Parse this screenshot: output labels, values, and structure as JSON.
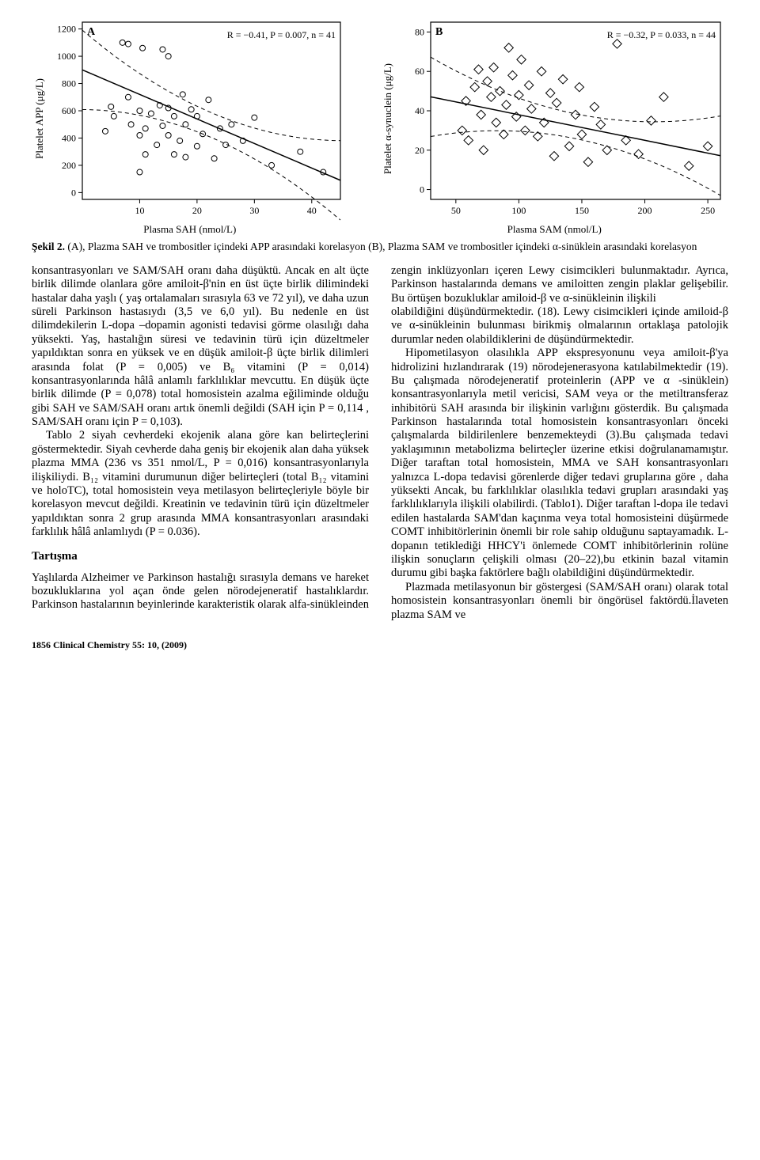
{
  "figure": {
    "A": {
      "type": "scatter",
      "panel_label": "A",
      "stats_text": "R = −0.41, P = 0.007, n = 41",
      "xlabel": "Plasma SAH (nmol/L)",
      "ylabel": "Platelet APP (μg/L)",
      "xlim": [
        0,
        45
      ],
      "ylim": [
        -50,
        1250
      ],
      "xticks": [
        10,
        20,
        30,
        40
      ],
      "yticks": [
        0,
        200,
        400,
        600,
        800,
        1000,
        1200
      ],
      "background_color": "#ffffff",
      "axis_color": "#000000",
      "marker": {
        "shape": "circle",
        "stroke": "#000000",
        "fill": "none",
        "size": 7
      },
      "regression": {
        "slope": -18.0,
        "intercept": 900,
        "stroke": "#000000",
        "width": 1.5
      },
      "ci_dash": "5,4",
      "label_fontsize": 13,
      "tick_fontsize": 12,
      "points": [
        [
          4,
          450
        ],
        [
          5,
          630
        ],
        [
          5.5,
          560
        ],
        [
          7,
          1100
        ],
        [
          8,
          1090
        ],
        [
          8,
          700
        ],
        [
          8.5,
          500
        ],
        [
          10,
          150
        ],
        [
          10,
          420
        ],
        [
          10,
          600
        ],
        [
          10.5,
          1060
        ],
        [
          11,
          280
        ],
        [
          11,
          470
        ],
        [
          12,
          580
        ],
        [
          13,
          350
        ],
        [
          13.5,
          640
        ],
        [
          14,
          1050
        ],
        [
          14,
          490
        ],
        [
          15,
          1000
        ],
        [
          15,
          620
        ],
        [
          15,
          420
        ],
        [
          16,
          280
        ],
        [
          16,
          560
        ],
        [
          17,
          380
        ],
        [
          17.5,
          720
        ],
        [
          18,
          500
        ],
        [
          18,
          260
        ],
        [
          19,
          610
        ],
        [
          20,
          340
        ],
        [
          20,
          560
        ],
        [
          21,
          430
        ],
        [
          22,
          680
        ],
        [
          23,
          250
        ],
        [
          24,
          470
        ],
        [
          25,
          350
        ],
        [
          26,
          500
        ],
        [
          28,
          380
        ],
        [
          30,
          550
        ],
        [
          33,
          200
        ],
        [
          38,
          300
        ],
        [
          42,
          150
        ]
      ]
    },
    "B": {
      "type": "scatter",
      "panel_label": "B",
      "stats_text": "R = −0.32, P = 0.033, n = 44",
      "xlabel": "Plasma SAM (nmol/L)",
      "ylabel": "Platelet α-synuclein (μg/L)",
      "xlim": [
        30,
        260
      ],
      "ylim": [
        -5,
        85
      ],
      "xticks": [
        50,
        100,
        150,
        200,
        250
      ],
      "yticks": [
        0,
        20,
        40,
        60,
        80
      ],
      "background_color": "#ffffff",
      "axis_color": "#000000",
      "marker": {
        "shape": "diamond",
        "stroke": "#000000",
        "fill": "none",
        "size": 8
      },
      "regression": {
        "slope": -0.13,
        "intercept": 51,
        "stroke": "#000000",
        "width": 1.5
      },
      "ci_dash": "5,4",
      "label_fontsize": 13,
      "tick_fontsize": 12,
      "points": [
        [
          55,
          30
        ],
        [
          58,
          45
        ],
        [
          60,
          25
        ],
        [
          65,
          52
        ],
        [
          68,
          61
        ],
        [
          70,
          38
        ],
        [
          72,
          20
        ],
        [
          75,
          55
        ],
        [
          78,
          47
        ],
        [
          80,
          62
        ],
        [
          82,
          34
        ],
        [
          85,
          50
        ],
        [
          88,
          28
        ],
        [
          90,
          43
        ],
        [
          92,
          72
        ],
        [
          95,
          58
        ],
        [
          98,
          37
        ],
        [
          100,
          48
        ],
        [
          102,
          66
        ],
        [
          105,
          30
        ],
        [
          108,
          53
        ],
        [
          110,
          41
        ],
        [
          115,
          27
        ],
        [
          118,
          60
        ],
        [
          120,
          34
        ],
        [
          125,
          49
        ],
        [
          128,
          17
        ],
        [
          130,
          44
        ],
        [
          135,
          56
        ],
        [
          140,
          22
        ],
        [
          145,
          38
        ],
        [
          148,
          52
        ],
        [
          150,
          28
        ],
        [
          155,
          14
        ],
        [
          160,
          42
        ],
        [
          165,
          33
        ],
        [
          170,
          20
        ],
        [
          178,
          74
        ],
        [
          185,
          25
        ],
        [
          195,
          18
        ],
        [
          205,
          35
        ],
        [
          215,
          47
        ],
        [
          235,
          12
        ],
        [
          250,
          22
        ]
      ]
    }
  },
  "caption": {
    "label": "Şekil 2.",
    "text": "(A), Plazma SAH ve trombositler içindeki APP arasındaki korelasyon (B), Plazma SAM ve trombositler içindeki α-sinüklein arasındaki korelasyon"
  },
  "body": {
    "p1": "konsantrasyonları ve SAM/SAH oranı daha düşüktü. Ancak en alt üçte birlik dilimde olanlara göre amiloit-β'nin en üst üçte birlik dilimindeki hastalar daha yaşlı ( yaş ortalamaları sırasıyla 63 ve 72 yıl), ve daha uzun süreli Parkinson hastasıydı (3,5 ve 6,0 yıl). Bu nedenle en üst dilimdekilerin L-dopa –dopamin agonisti tedavisi görme olasılığı daha yüksekti. Yaş, hastalığın süresi ve tedavinin türü için düzeltmeler yapıldıktan sonra en yüksek ve en düşük amiloit-β üçte birlik dilimleri arasında folat (P = 0,005) ve B₆ vitamini (P = 0,014) konsantrasyonlarında hâlâ anlamlı farklılıklar mevcuttu. En düşük üçte birlik dilimde (P = 0,078) total homosistein  azalma eğiliminde olduğu gibi SAH ve  SAM/SAH oranı artık önemli değildi (SAH için P = 0,114 , SAM/SAH oranı için P = 0,103).",
    "p2": "Tablo 2 siyah cevherdeki ekojenik alana göre kan belirteçlerini göstermektedir. Siyah cevherde daha geniş bir ekojenik alan daha yüksek plazma MMA (236 vs 351 nmol/L, P = 0,016) konsantrasyonlarıyla ilişkiliydi.  B₁₂ vitamini durumunun diğer belirteçleri (total B₁₂ vitamini ve holoTC), total homosistein veya metilasyon belirteçleriyle böyle bir korelasyon mevcut değildi.  Kreatinin ve tedavinin türü için düzeltmeler yapıldıktan  sonra  2  grup  arasında  MMA konsantrasyonları arasındaki farklılık hâlâ anlamlıydı (P = 0.036).",
    "h1": "Tartışma",
    "p3": "Yaşlılarda Alzheimer ve Parkinson hastalığı sırasıyla demans ve hareket bozukluklarına yol açan önde gelen nörodejeneratif  hastalıklardır. Parkinson hastalarının beyinlerinde karakteristik olarak alfa-sinükleinden zengin  inklüzyonları  içeren  Lewy  cisimcikleri bulunmaktadır.    Ayrıca,  Parkinson  hastalarında demans ve amiloitten zengin plaklar gelişebilir. Bu örtüşen bozukluklar amiloid-β ve α-sinükleinin ilişkili",
    "p4": "olabildiğini düşündürmektedir. (18). Lewy cisimcikleri içinde amiloid-β ve α-sinükleinin bulunması birikmiş olmalarının  ortaklaşa  patolojik  durumlar  neden olabildiklerini de düşündürmektedir.",
    "p5": "Hipometilasyon olasılıkla APP ekspresyonunu veya amiloit-β'ya     hidrolizini     hızlandırarak     (19) nörodejenerasyona katılabilmektedir (19). Bu çalışmada nörodejeneratif proteinlerin (APP ve α -sinüklein) konsantrasyonlarıyla metil vericisi, SAM veya or the metiltransferaz inhibitörü  SAH arasında bir ilişkinin varlığını  gösterdik.  Bu  çalışmada  Parkinson hastalarında total homosistein konsantrasyonları önceki çalışmalarda bildirilenlere benzemekteydi (3).Bu çalışmada tedavi yaklaşımının metabolizma belirteçler üzerine etkisi doğrulanamamıştır. Diğer taraftan   total   homosistein,   MMA   ve   SAH konsantrasyonları yalnızca L-dopa tedavisi görenlerde diğer tedavi gruplarına göre , daha yüksekti Ancak, bu farklılıklar olasılıkla tedavi grupları arasındaki yaş farklılıklarıyla  ilişkili  olabilirdi.  (Tablo1).   Diğer taraftan l-dopa ile tedavi edilen hastalarda SAM'dan kaçınma veya total homosisteini düşürmede COMT inhibitörlerinin önemli bir role sahip olduğunu saptayamadık.   L-dopanın   tetiklediği   HHCY'i önlemede COMT inhibitörlerinin rolüne ilişkin sonuçların çelişkili olması (20–22),bu etkinin bazal vitamin  durumu  gibi  başka  faktörlere  bağlı olabildiğini düşündürmektedir.",
    "p6": "Plazmada metilasyonun bir göstergesi (SAM/SAH oranı) olarak total homosistein konsantrasyonları önemli bir öngörüsel faktördü.İlaveten plazma SAM ve"
  },
  "footer": "1856  Clinical Chemistry  55: 10,  (2009)"
}
